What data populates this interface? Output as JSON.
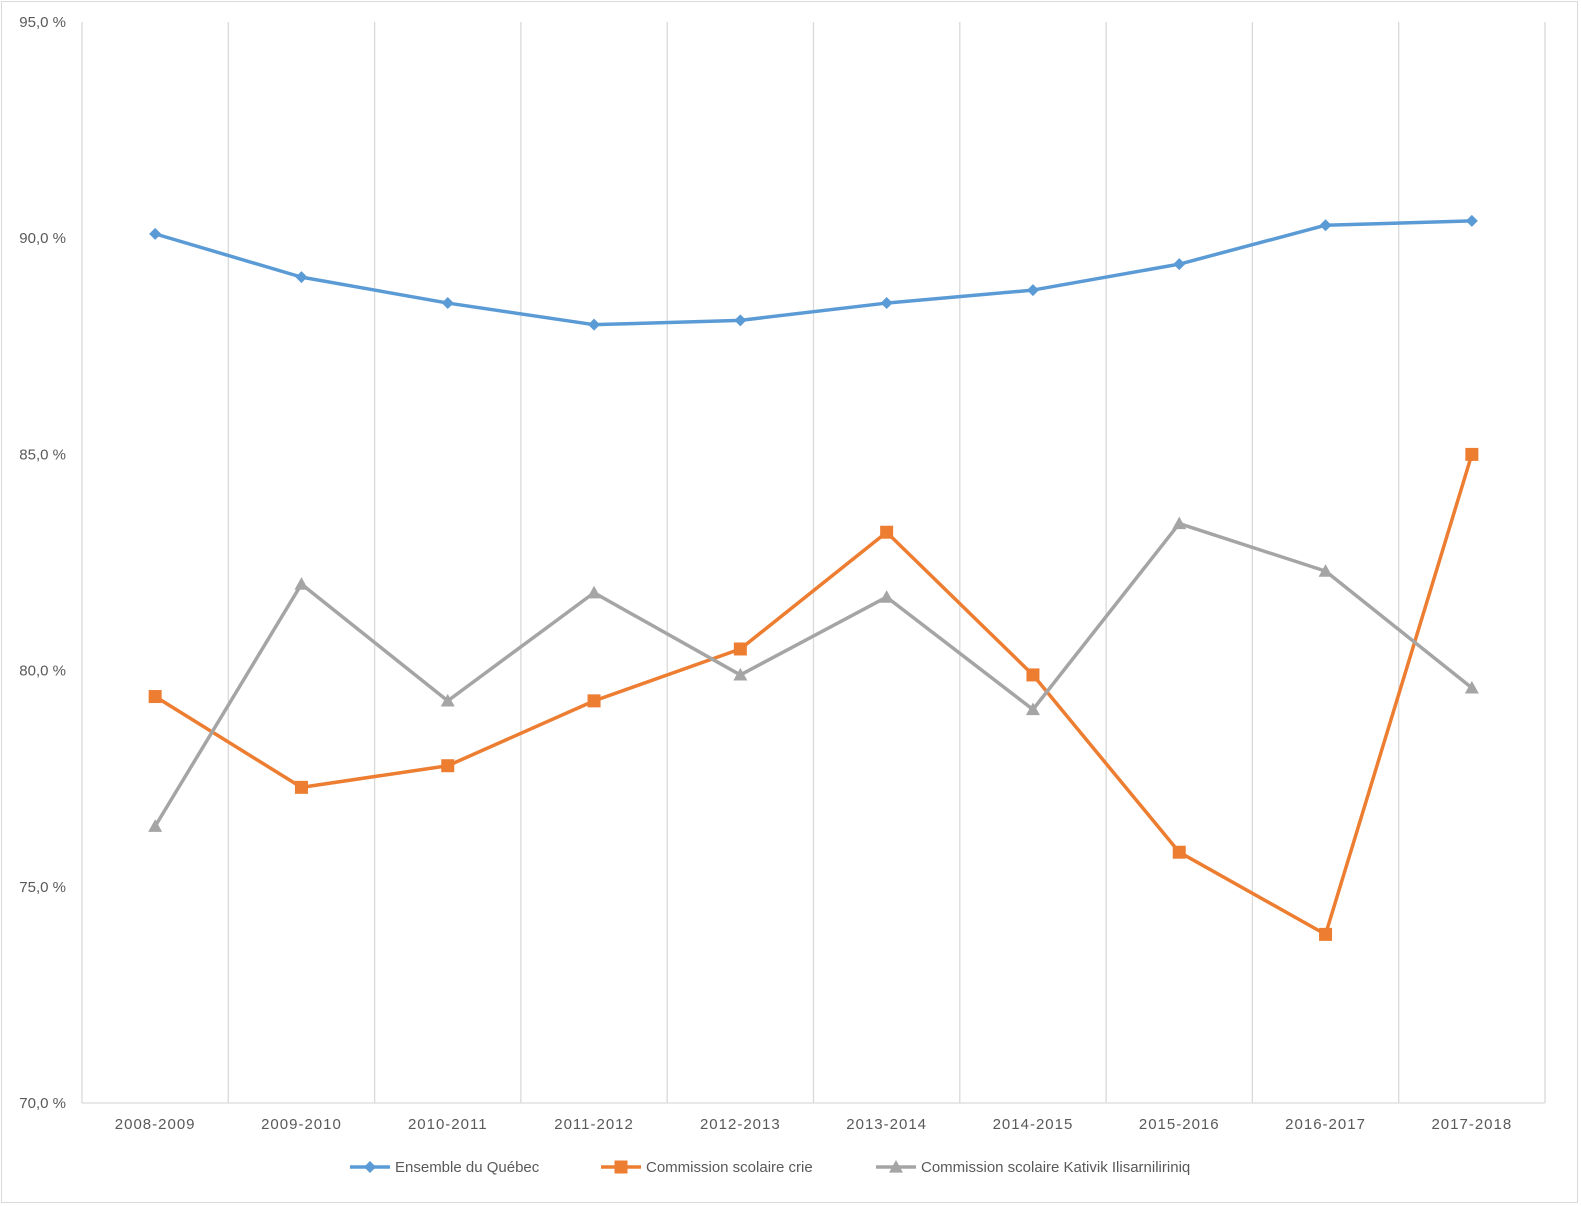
{
  "chart_data": {
    "type": "line",
    "title": "",
    "xlabel": "",
    "ylabel": "",
    "categories": [
      "2008-2009",
      "2009-2010",
      "2010-2011",
      "2011-2012",
      "2012-2013",
      "2013-2014",
      "2014-2015",
      "2015-2016",
      "2016-2017",
      "2017-2018"
    ],
    "ylim": [
      70,
      95
    ],
    "yticks": [
      "70,0 %",
      "75,0 %",
      "80,0 %",
      "85,0 %",
      "90,0 %",
      "95,0 %"
    ],
    "grid": "vertical",
    "legend_position": "bottom",
    "series": [
      {
        "name": "Ensemble du Québec",
        "color": "#5b9bd5",
        "marker": "diamond",
        "values": [
          90.1,
          89.1,
          88.5,
          88.0,
          88.1,
          88.5,
          88.8,
          89.4,
          90.3,
          90.4
        ]
      },
      {
        "name": "Commission scolaire crie",
        "color": "#ed7d31",
        "marker": "square",
        "values": [
          79.4,
          77.3,
          77.8,
          79.3,
          80.5,
          83.2,
          79.9,
          75.8,
          73.9,
          85.0
        ]
      },
      {
        "name": "Commission scolaire Kativik Ilisarniliriniq",
        "color": "#a5a5a5",
        "marker": "triangle",
        "values": [
          76.4,
          82.0,
          79.3,
          81.8,
          79.9,
          81.7,
          79.1,
          83.4,
          82.3,
          79.6
        ]
      }
    ]
  }
}
